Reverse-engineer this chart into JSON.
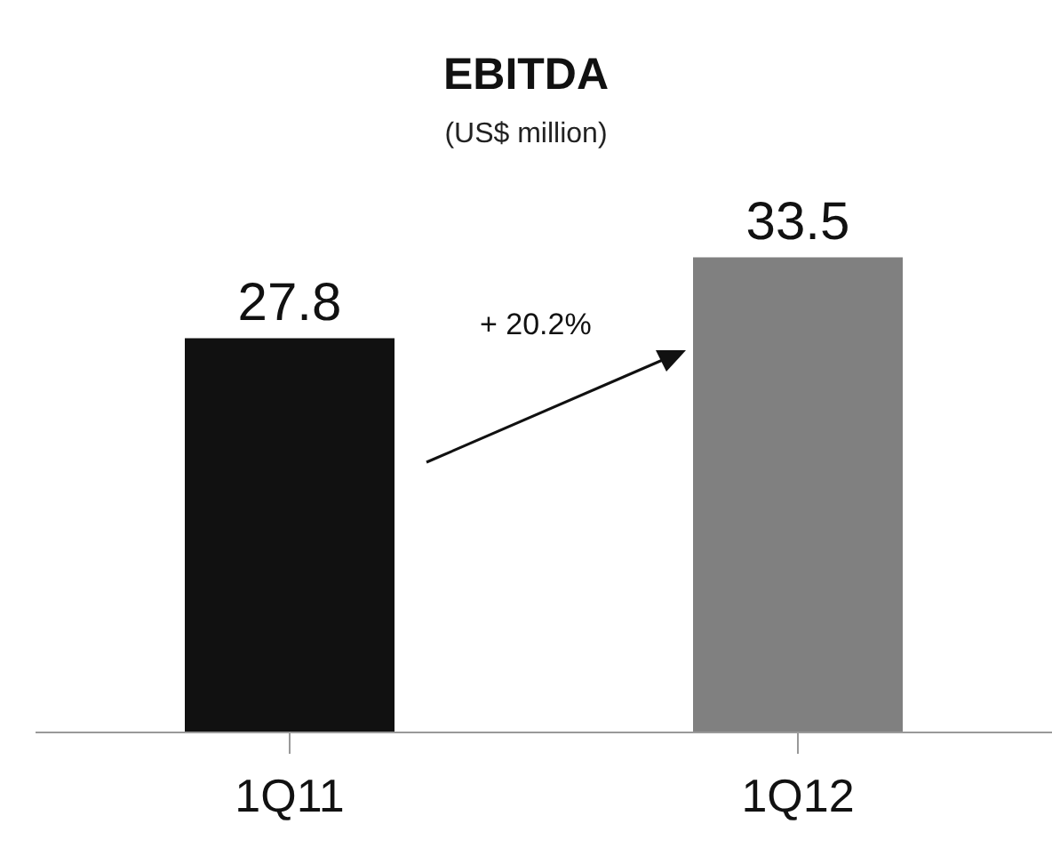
{
  "chart_data": {
    "type": "bar",
    "title": "EBITDA",
    "subtitle": "(US$ million)",
    "categories": [
      "1Q11",
      "1Q12"
    ],
    "values": [
      27.8,
      33.5
    ],
    "colors": [
      "#111111",
      "#808080"
    ],
    "data_labels": true,
    "annotations": [
      "+ 20.2%"
    ]
  }
}
